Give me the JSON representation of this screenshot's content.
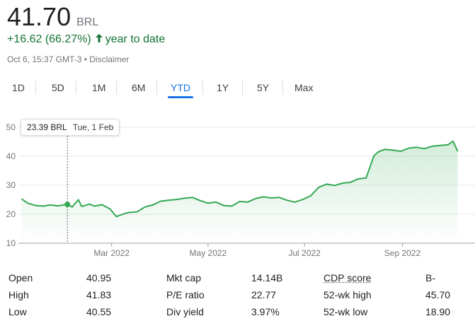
{
  "quote": {
    "price": "41.70",
    "currency": "BRL",
    "change": "+16.62 (66.27%)",
    "period": "year to date",
    "timestamp": "Oct 6, 15:37 GMT-3",
    "separator": " • ",
    "disclaimer": "Disclaimer",
    "up_color": "#137333"
  },
  "ranges": [
    "1D",
    "5D",
    "1M",
    "6M",
    "YTD",
    "1Y",
    "5Y",
    "Max"
  ],
  "active_range": "YTD",
  "tooltip": {
    "value": "23.39 BRL",
    "date": "Tue, 1 Feb"
  },
  "chart_data": {
    "type": "area",
    "color": "#34a853",
    "ylim": [
      10,
      50
    ],
    "yticks": [
      10,
      20,
      30,
      40,
      50
    ],
    "xticks": [
      "Mar 2022",
      "May 2022",
      "Jul 2022",
      "Sep 2022"
    ],
    "grid": true,
    "x": [
      "2022-01-03",
      "2022-01-07",
      "2022-01-12",
      "2022-01-17",
      "2022-01-21",
      "2022-01-26",
      "2022-02-01",
      "2022-02-04",
      "2022-02-08",
      "2022-02-10",
      "2022-02-15",
      "2022-02-18",
      "2022-02-23",
      "2022-02-28",
      "2022-03-04",
      "2022-03-09",
      "2022-03-12",
      "2022-03-17",
      "2022-03-22",
      "2022-03-27",
      "2022-04-01",
      "2022-04-06",
      "2022-04-11",
      "2022-04-16",
      "2022-04-21",
      "2022-04-26",
      "2022-05-01",
      "2022-05-06",
      "2022-05-11",
      "2022-05-16",
      "2022-05-21",
      "2022-05-26",
      "2022-05-31",
      "2022-06-05",
      "2022-06-10",
      "2022-06-15",
      "2022-06-20",
      "2022-06-25",
      "2022-06-30",
      "2022-07-05",
      "2022-07-10",
      "2022-07-15",
      "2022-07-20",
      "2022-07-25",
      "2022-07-30",
      "2022-08-04",
      "2022-08-09",
      "2022-08-14",
      "2022-08-17",
      "2022-08-21",
      "2022-08-26",
      "2022-08-31",
      "2022-09-05",
      "2022-09-10",
      "2022-09-15",
      "2022-09-20",
      "2022-09-25",
      "2022-09-30",
      "2022-10-03",
      "2022-10-06"
    ],
    "y": [
      25.3,
      23.8,
      23.0,
      22.8,
      23.2,
      22.9,
      23.39,
      22.5,
      25.0,
      22.7,
      23.5,
      22.8,
      23.3,
      21.8,
      19.2,
      20.2,
      20.6,
      20.8,
      22.5,
      23.2,
      24.5,
      24.8,
      25.1,
      25.5,
      25.8,
      24.7,
      23.8,
      24.2,
      23.0,
      22.8,
      24.4,
      24.2,
      25.4,
      26.0,
      25.6,
      25.8,
      24.8,
      24.2,
      25.1,
      26.4,
      29.3,
      30.4,
      29.9,
      30.7,
      31.0,
      32.2,
      32.5,
      40.2,
      41.6,
      42.4,
      42.1,
      41.7,
      42.8,
      43.1,
      42.6,
      43.5,
      43.7,
      44.0,
      45.2,
      41.7
    ]
  },
  "stats": [
    [
      {
        "label": "Open",
        "value": "40.95"
      },
      {
        "label": "Mkt cap",
        "value": "14.14B"
      },
      {
        "label": "CDP score",
        "value": "B-",
        "link": true
      }
    ],
    [
      {
        "label": "High",
        "value": "41.83"
      },
      {
        "label": "P/E ratio",
        "value": "22.77"
      },
      {
        "label": "52-wk high",
        "value": "45.70"
      }
    ],
    [
      {
        "label": "Low",
        "value": "40.55"
      },
      {
        "label": "Div yield",
        "value": "3.97%"
      },
      {
        "label": "52-wk low",
        "value": "18.90"
      }
    ]
  ]
}
